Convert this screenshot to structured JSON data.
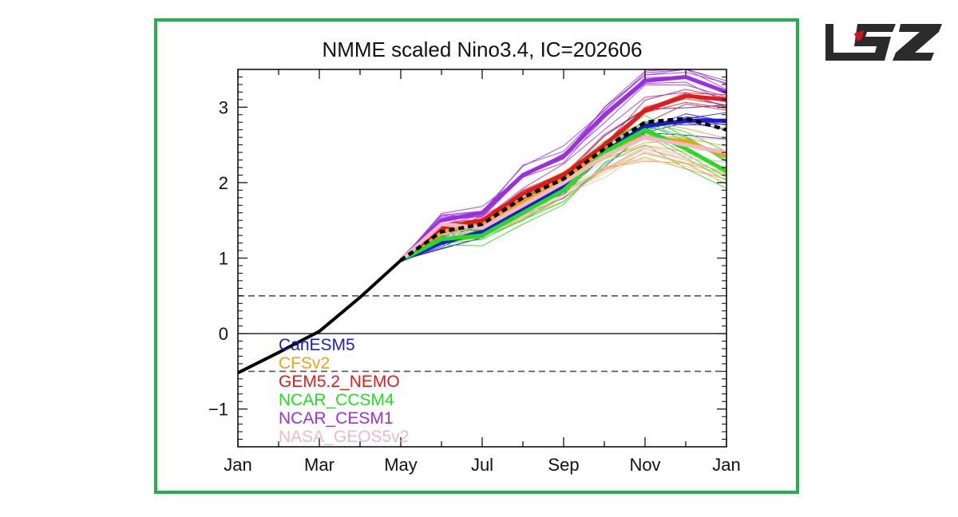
{
  "colors": {
    "frame": "#22b04b",
    "logo_dark": "#2b2b2b",
    "logo_red": "#d4121b"
  },
  "logo": {
    "text": "LSZ",
    "icon": "site-logo"
  },
  "chart_data": {
    "type": "line",
    "title": "NMME scaled Nino3.4, IC=202606",
    "xlabel": "",
    "ylabel": "",
    "x_tick_labels": [
      "Jan",
      "Mar",
      "May",
      "Jul",
      "Sep",
      "Nov",
      "Jan"
    ],
    "y_tick_labels": [
      "3",
      "2",
      "1",
      "0",
      "−1"
    ],
    "y_ticks": [
      3,
      2,
      1,
      0,
      -1
    ],
    "xlim": [
      0,
      12
    ],
    "ylim": [
      -1.5,
      3.5
    ],
    "reference_lines": [
      {
        "y": 0.5,
        "style": "dashed"
      },
      {
        "y": 0.0,
        "style": "solid"
      },
      {
        "y": -0.5,
        "style": "dashed"
      }
    ],
    "observed": {
      "x": [
        0,
        1,
        2,
        3,
        4
      ],
      "values": [
        -0.52,
        -0.25,
        0.03,
        0.48,
        0.97
      ],
      "color": "#000000"
    },
    "series": [
      {
        "name": "CanESM5",
        "color": "#1c1ccc",
        "x": [
          4,
          5,
          6,
          7,
          8,
          9,
          10,
          11,
          12
        ],
        "values": [
          0.97,
          1.2,
          1.35,
          1.65,
          1.95,
          2.4,
          2.75,
          2.82,
          2.82
        ],
        "spread": 0.25
      },
      {
        "name": "CFSv2",
        "color": "#e8a317",
        "x": [
          4,
          5,
          6,
          7,
          8,
          9,
          10,
          11,
          12
        ],
        "values": [
          0.97,
          1.35,
          1.45,
          1.75,
          2.05,
          2.4,
          2.6,
          2.55,
          2.35
        ],
        "spread": 0.3
      },
      {
        "name": "GEM5.2_NEMO",
        "color": "#e01b1b",
        "x": [
          4,
          5,
          6,
          7,
          8,
          9,
          10,
          11,
          12
        ],
        "values": [
          0.97,
          1.4,
          1.5,
          1.85,
          2.1,
          2.5,
          2.95,
          3.15,
          3.1
        ],
        "spread": 0.2
      },
      {
        "name": "NCAR_CCSM4",
        "color": "#22dd22",
        "x": [
          4,
          5,
          6,
          7,
          8,
          9,
          10,
          11,
          12
        ],
        "values": [
          0.97,
          1.25,
          1.3,
          1.6,
          1.9,
          2.4,
          2.7,
          2.45,
          2.15
        ],
        "spread": 0.2
      },
      {
        "name": "NCAR_CESM1",
        "color": "#9b2fe0",
        "x": [
          4,
          5,
          6,
          7,
          8,
          9,
          10,
          11,
          12
        ],
        "values": [
          0.97,
          1.5,
          1.6,
          2.1,
          2.35,
          2.9,
          3.35,
          3.4,
          3.2
        ],
        "spread": 0.15
      },
      {
        "name": "NASA_GEOS5v2",
        "color": "#f0b9c6",
        "x": [
          4,
          5,
          6,
          7,
          8,
          9,
          10,
          11,
          12
        ],
        "values": [
          0.97,
          1.45,
          1.4,
          1.7,
          2.0,
          2.35,
          2.6,
          2.5,
          2.4
        ],
        "spread": 0.25
      }
    ],
    "ensemble_mean": {
      "x": [
        4,
        5,
        6,
        7,
        8,
        9,
        10,
        11,
        12
      ],
      "values": [
        0.97,
        1.35,
        1.45,
        1.8,
        2.05,
        2.45,
        2.8,
        2.85,
        2.7
      ],
      "color": "#000000",
      "style": "dashed"
    },
    "legend_placement": "lower-left",
    "grid": false
  }
}
